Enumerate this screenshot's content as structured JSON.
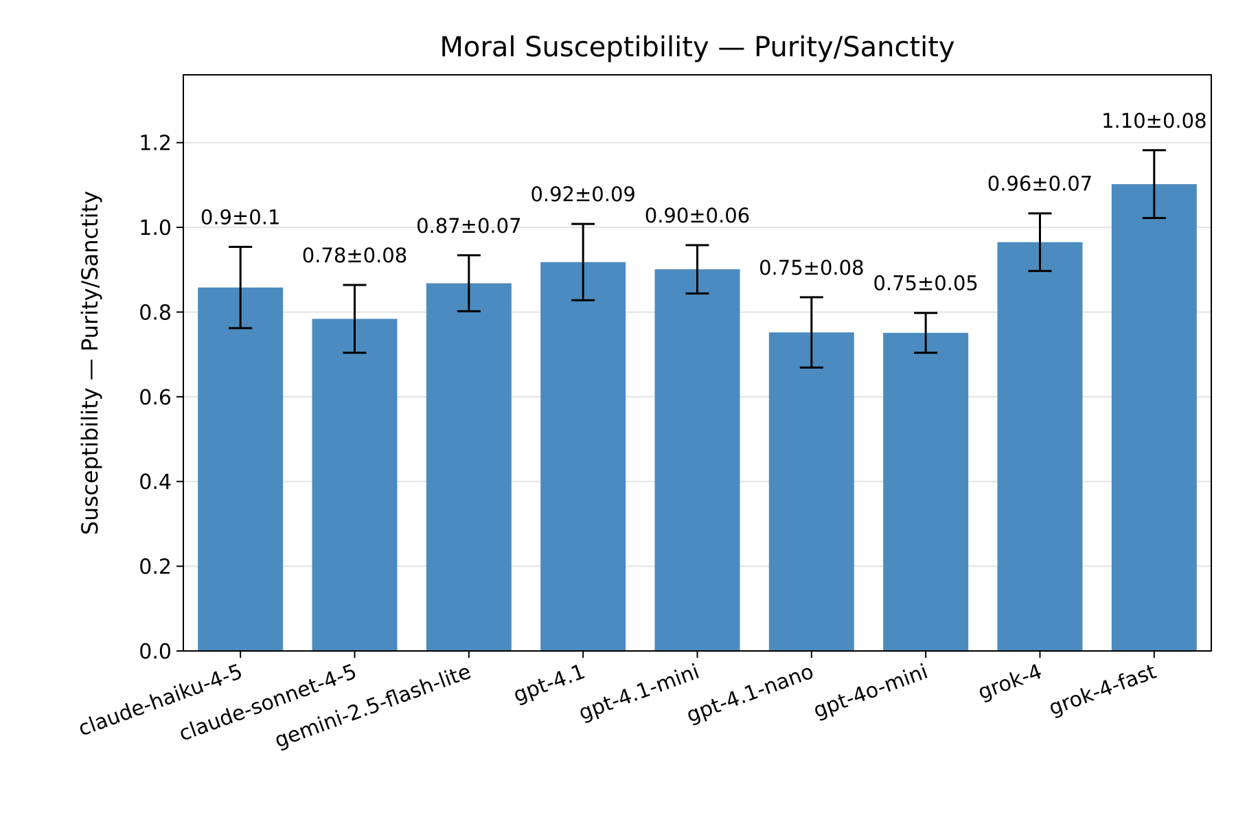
{
  "chart_data": {
    "type": "bar",
    "title": "Moral Susceptibility — Purity/Sanctity",
    "xlabel": "",
    "ylabel": "Susceptibility — Purity/Sanctity",
    "ylim": [
      0,
      1.36
    ],
    "yticks": [
      "0.0",
      "0.2",
      "0.4",
      "0.6",
      "0.8",
      "1.0",
      "1.2"
    ],
    "grid": "horizontal",
    "categories": [
      "claude-haiku-4-5",
      "claude-sonnet-4-5",
      "gemini-2.5-flash-lite",
      "gpt-4.1",
      "gpt-4.1-mini",
      "gpt-4.1-nano",
      "gpt-4o-mini",
      "grok-4",
      "grok-4-fast"
    ],
    "values": [
      0.858,
      0.784,
      0.868,
      0.918,
      0.901,
      0.752,
      0.751,
      0.965,
      1.102
    ],
    "errors": [
      0.096,
      0.08,
      0.066,
      0.09,
      0.057,
      0.083,
      0.047,
      0.068,
      0.08
    ],
    "data_labels": [
      "0.9±0.1",
      "0.78±0.08",
      "0.87±0.07",
      "0.92±0.09",
      "0.90±0.06",
      "0.75±0.08",
      "0.75±0.05",
      "0.96±0.07",
      "1.10±0.08"
    ],
    "bar_color": "#4c8bbf",
    "error_color": "#000000"
  }
}
